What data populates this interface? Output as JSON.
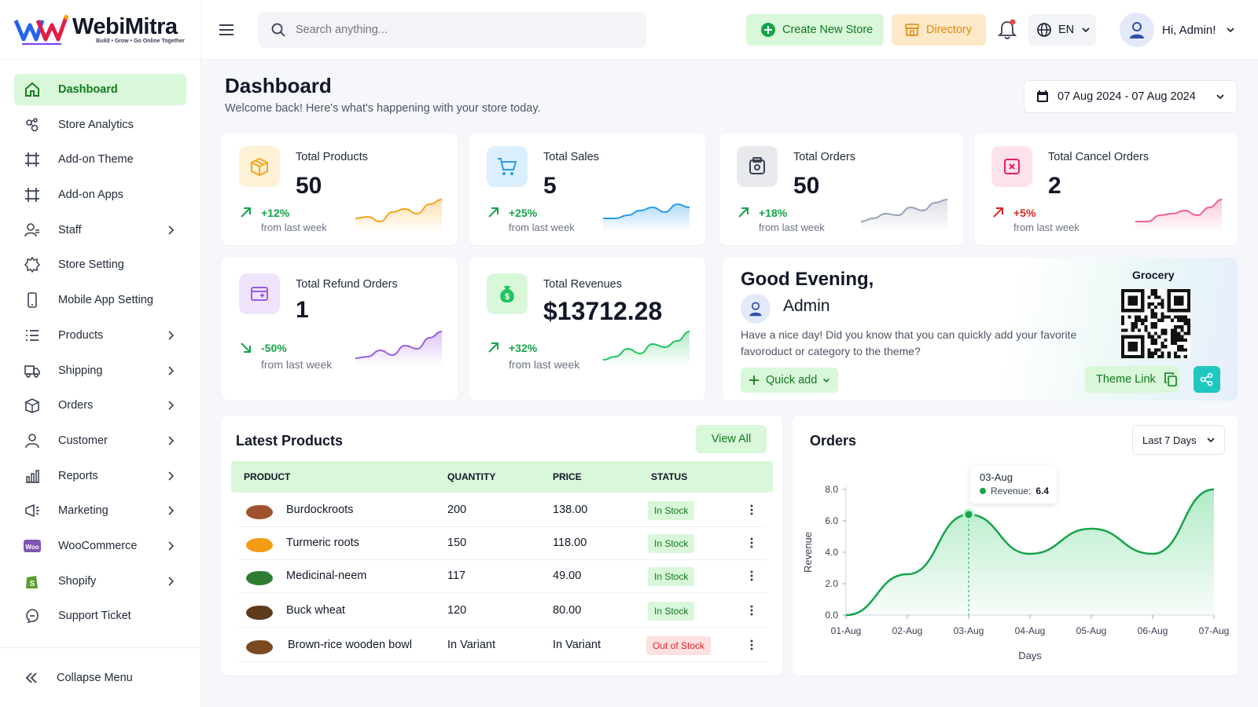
{
  "brand": {
    "name": "WebiMitra",
    "tagline": "Build • Grow • Go Online Together"
  },
  "sidebar": {
    "items": [
      {
        "label": "Dashboard",
        "icon": "home-icon",
        "active": true
      },
      {
        "label": "Store Analytics",
        "icon": "analytics-icon"
      },
      {
        "label": "Add-on Theme",
        "icon": "frame-icon"
      },
      {
        "label": "Add-on Apps",
        "icon": "frame-icon"
      },
      {
        "label": "Staff",
        "icon": "staff-icon",
        "chevron": true
      },
      {
        "label": "Store Setting",
        "icon": "gear-icon"
      },
      {
        "label": "Mobile App Setting",
        "icon": "mobile-icon"
      },
      {
        "label": "Products",
        "icon": "list-icon",
        "chevron": true
      },
      {
        "label": "Shipping",
        "icon": "truck-icon",
        "chevron": true
      },
      {
        "label": "Orders",
        "icon": "box-icon",
        "chevron": true
      },
      {
        "label": "Customer",
        "icon": "user-icon",
        "chevron": true
      },
      {
        "label": "Reports",
        "icon": "chart-icon",
        "chevron": true
      },
      {
        "label": "Marketing",
        "icon": "marketing-icon",
        "chevron": true
      },
      {
        "label": "WooCommerce",
        "icon": "woo-icon",
        "chevron": true
      },
      {
        "label": "Shopify",
        "icon": "shopify-icon",
        "chevron": true
      },
      {
        "label": "Support Ticket",
        "icon": "support-icon"
      }
    ],
    "collapse_label": "Collapse Menu"
  },
  "topbar": {
    "search_placeholder": "Search anything...",
    "create_store": "Create New Store",
    "directory": "Directory",
    "language": "EN",
    "greeting": "Hi, Admin!"
  },
  "header": {
    "title": "Dashboard",
    "subtitle": "Welcome back! Here's what's happening with your store today.",
    "date_range": "07 Aug 2024 - 07 Aug 2024"
  },
  "stats": [
    {
      "label": "Total Products",
      "value": "50",
      "change": "+12%",
      "from": "from last week",
      "trend": "up",
      "color": "#f4a51c"
    },
    {
      "label": "Total Sales",
      "value": "5",
      "change": "+25%",
      "from": "from last week",
      "trend": "up",
      "color": "#2b9be8"
    },
    {
      "label": "Total Orders",
      "value": "50",
      "change": "+18%",
      "from": "from last week",
      "trend": "up",
      "color": "#9aa3b8"
    },
    {
      "label": "Total Cancel Orders",
      "value": "2",
      "change": "+5%",
      "from": "from last week",
      "trend": "up-red",
      "color": "#f06292"
    },
    {
      "label": "Total Refund Orders",
      "value": "1",
      "change": "-50%",
      "from": "from last week",
      "trend": "down",
      "color": "#9b5de5"
    },
    {
      "label": "Total Revenues",
      "value": "$13712.28",
      "change": "+32%",
      "from": "from last week",
      "trend": "up",
      "color": "#22c55e"
    }
  ],
  "greeting_card": {
    "title": "Good Evening,",
    "name": "Admin",
    "message": "Have a nice day! Did you know that you can quickly add your favorite favoroduct or category to the theme?",
    "quick_add": "Quick add",
    "qr_label": "Grocery",
    "theme_link": "Theme Link"
  },
  "latest_products": {
    "title": "Latest Products",
    "view_all": "View All",
    "columns": [
      "PRODUCT",
      "QUANTITY",
      "PRICE",
      "STATUS"
    ],
    "rows": [
      {
        "name": "Burdockroots",
        "quantity": "200",
        "price": "138.00",
        "status": "In Stock",
        "in_stock": true,
        "color": "#a0522d"
      },
      {
        "name": "Turmeric roots",
        "quantity": "150",
        "price": "118.00",
        "status": "In Stock",
        "in_stock": true,
        "color": "#f39c12"
      },
      {
        "name": "Medicinal-neem",
        "quantity": "117",
        "price": "49.00",
        "status": "In Stock",
        "in_stock": true,
        "color": "#2e7d32"
      },
      {
        "name": "Buck wheat",
        "quantity": "120",
        "price": "80.00",
        "status": "In Stock",
        "in_stock": true,
        "color": "#5d3a1a"
      },
      {
        "name": "Brown-rice wooden bowl",
        "quantity": "In Variant",
        "price": "In Variant",
        "status": "Out of Stock",
        "in_stock": false,
        "color": "#7b4a21"
      }
    ]
  },
  "orders_chart": {
    "title": "Orders",
    "period": "Last 7 Days",
    "tooltip_date": "03-Aug",
    "tooltip_label": "Revenue:",
    "tooltip_value": "6.4"
  },
  "chart_data": {
    "type": "area",
    "title": "Orders",
    "xlabel": "Days",
    "ylabel": "Revenue",
    "categories": [
      "01-Aug",
      "02-Aug",
      "03-Aug",
      "04-Aug",
      "05-Aug",
      "06-Aug",
      "07-Aug"
    ],
    "series": [
      {
        "name": "Revenue",
        "values": [
          0.0,
          2.6,
          6.4,
          3.9,
          5.5,
          3.9,
          8.0
        ]
      }
    ],
    "yticks": [
      "0.0",
      "2.0",
      "4.0",
      "6.0",
      "8.0"
    ],
    "ylim": [
      0,
      8
    ],
    "grid": false,
    "color": "#16a34a"
  }
}
